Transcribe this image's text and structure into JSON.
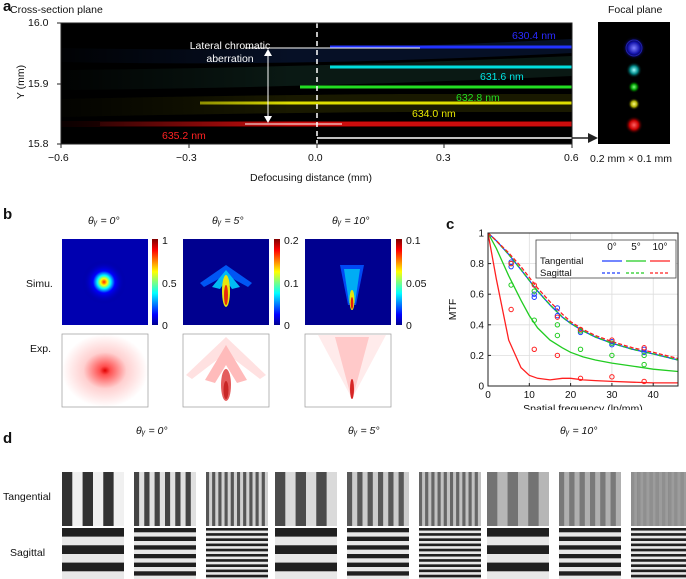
{
  "panel_a": {
    "letter": "a",
    "cross_section_title": "Cross-section plane",
    "focal_title": "Focal plane",
    "y_label": "Y (mm)",
    "x_label": "Defocusing distance (mm)",
    "y_ticks": [
      "16.0",
      "15.9",
      "15.8"
    ],
    "x_ticks": [
      "−0.6",
      "−0.3",
      "0.0",
      "0.3",
      "0.6"
    ],
    "annotation": [
      "Lateral chromatic",
      "aberration"
    ],
    "focal_size": "0.2 mm × 0.1 mm",
    "wavelengths": [
      {
        "label": "630.4 nm",
        "color": "#2a2aff"
      },
      {
        "label": "631.6 nm",
        "color": "#00e5e5"
      },
      {
        "label": "632.8 nm",
        "color": "#22dd22"
      },
      {
        "label": "634.0 nm",
        "color": "#e6e600"
      },
      {
        "label": "635.2 nm",
        "color": "#ff2222"
      }
    ]
  },
  "panel_b": {
    "letter": "b",
    "angles": [
      "θᵧ = 0°",
      "θᵧ = 5°",
      "θᵧ = 10°"
    ],
    "row_simu": "Simu.",
    "row_exp": "Exp.",
    "colorbars": [
      [
        "1",
        "0.5",
        "0"
      ],
      [
        "0.2",
        "0.1",
        "0"
      ],
      [
        "0.1",
        "0.05",
        "0"
      ]
    ]
  },
  "panel_c": {
    "letter": "c"
  },
  "chart_data": {
    "type": "line",
    "xlabel": "Spatial frequency (lp/mm)",
    "ylabel": "MTF",
    "xlim": [
      0,
      46
    ],
    "ylim": [
      0,
      1
    ],
    "x_ticks": [
      "0",
      "10",
      "20",
      "30",
      "40"
    ],
    "y_ticks": [
      "0",
      "0.2",
      "0.4",
      "0.6",
      "0.8",
      "1"
    ],
    "grid": true,
    "legend": {
      "placement": "top-right",
      "columns": [
        "0°",
        "5°",
        "10°"
      ],
      "rows": [
        "Tangential",
        "Sagittal"
      ]
    },
    "colors": {
      "0": "#1f3fff",
      "5": "#22cc22",
      "10": "#ff2020",
      "diff": "#333333"
    },
    "x": [
      0,
      2,
      5,
      8,
      10,
      12,
      15,
      18,
      20,
      23,
      26,
      30,
      35,
      40,
      46
    ],
    "series": [
      {
        "name": "0° Tangential",
        "color": "#1f3fff",
        "style": "solid",
        "values": [
          1.0,
          0.95,
          0.86,
          0.76,
          0.69,
          0.62,
          0.53,
          0.45,
          0.41,
          0.36,
          0.32,
          0.28,
          0.24,
          0.21,
          0.17
        ]
      },
      {
        "name": "0° Sagittal",
        "color": "#1f3fff",
        "style": "dashed",
        "values": [
          1.0,
          0.95,
          0.86,
          0.76,
          0.69,
          0.62,
          0.53,
          0.45,
          0.41,
          0.36,
          0.32,
          0.28,
          0.24,
          0.21,
          0.17
        ]
      },
      {
        "name": "5° Tangential",
        "color": "#22cc22",
        "style": "solid",
        "values": [
          1.0,
          0.9,
          0.72,
          0.56,
          0.46,
          0.38,
          0.3,
          0.25,
          0.22,
          0.19,
          0.17,
          0.15,
          0.13,
          0.11,
          0.095
        ]
      },
      {
        "name": "5° Sagittal",
        "color": "#22cc22",
        "style": "dashed",
        "values": [
          1.0,
          0.95,
          0.86,
          0.76,
          0.69,
          0.62,
          0.53,
          0.45,
          0.41,
          0.36,
          0.32,
          0.28,
          0.24,
          0.21,
          0.17
        ]
      },
      {
        "name": "10° Tangential",
        "color": "#ff2020",
        "style": "solid",
        "values": [
          1.0,
          0.7,
          0.3,
          0.12,
          0.07,
          0.05,
          0.04,
          0.05,
          0.05,
          0.04,
          0.035,
          0.03,
          0.025,
          0.02,
          0.02
        ]
      },
      {
        "name": "10° Sagittal",
        "color": "#ff2020",
        "style": "dashed",
        "values": [
          1.0,
          0.95,
          0.87,
          0.78,
          0.71,
          0.64,
          0.55,
          0.47,
          0.42,
          0.37,
          0.33,
          0.29,
          0.25,
          0.22,
          0.18
        ]
      }
    ],
    "markers": [
      {
        "series": "0° Tangential",
        "color": "#1f3fff",
        "x": [
          5.6,
          11.2,
          16.8,
          22.4,
          30,
          37.8
        ],
        "y": [
          0.81,
          0.6,
          0.51,
          0.36,
          0.29,
          0.24
        ]
      },
      {
        "series": "0° Sagittal",
        "color": "#1f3fff",
        "x": [
          5.6,
          11.2,
          16.8,
          22.4,
          30,
          37.8
        ],
        "y": [
          0.78,
          0.58,
          0.46,
          0.35,
          0.27,
          0.22
        ]
      },
      {
        "series": "5° Tangential",
        "color": "#22cc22",
        "x": [
          5.6,
          11.2,
          16.8,
          22.4,
          30,
          37.8
        ],
        "y": [
          0.66,
          0.43,
          0.33,
          0.24,
          0.2,
          0.14
        ]
      },
      {
        "series": "5° Sagittal",
        "color": "#22cc22",
        "x": [
          5.6,
          11.2,
          16.8,
          22.4,
          30,
          37.8
        ],
        "y": [
          0.8,
          0.62,
          0.4,
          0.36,
          0.28,
          0.2
        ]
      },
      {
        "series": "10° Tangential",
        "color": "#ff2020",
        "x": [
          5.6,
          11.2,
          16.8,
          22.4,
          30,
          37.8
        ],
        "y": [
          0.5,
          0.24,
          0.2,
          0.05,
          0.06,
          0.03
        ]
      },
      {
        "series": "10° Sagittal",
        "color": "#ff2020",
        "x": [
          5.6,
          11.2,
          16.8,
          22.4,
          30,
          37.8
        ],
        "y": [
          0.8,
          0.66,
          0.45,
          0.37,
          0.3,
          0.25
        ]
      }
    ]
  },
  "panel_d": {
    "letter": "d",
    "angles": [
      "θᵧ = 0°",
      "θᵧ = 5°",
      "θᵧ = 10°"
    ],
    "rows": [
      "Tangential",
      "Sagittal"
    ]
  }
}
